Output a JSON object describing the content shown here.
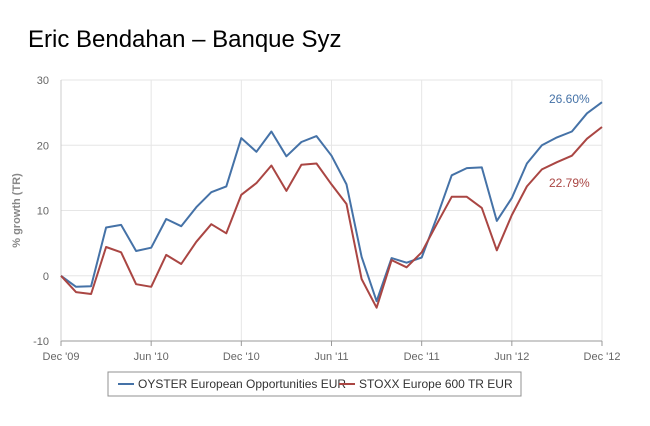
{
  "header": {
    "title": "Eric Bendahan – Banque Syz"
  },
  "chart_data": {
    "type": "line",
    "title": "Eric Bendahan – Banque Syz",
    "xlabel": "",
    "ylabel": "% growth (TR)",
    "ylim": [
      -10,
      30
    ],
    "yticks": [
      "30",
      "20",
      "10",
      "0",
      "-10"
    ],
    "ytick_values": [
      30,
      20,
      10,
      0,
      -10
    ],
    "xticks": [
      "Dec '09",
      "Jun '10",
      "Dec '10",
      "Jun '11",
      "Dec '11",
      "Jun '12",
      "Dec '12"
    ],
    "xtick_index": [
      0,
      6,
      12,
      18,
      24,
      30,
      36
    ],
    "x": [
      "Dec '09",
      "Jan '10",
      "Feb '10",
      "Mar '10",
      "Apr '10",
      "May '10",
      "Jun '10",
      "Jul '10",
      "Aug '10",
      "Sep '10",
      "Oct '10",
      "Nov '10",
      "Dec '10",
      "Jan '11",
      "Feb '11",
      "Mar '11",
      "Apr '11",
      "May '11",
      "Jun '11",
      "Jul '11",
      "Aug '11",
      "Sep '11",
      "Oct '11",
      "Nov '11",
      "Dec '11",
      "Jan '12",
      "Feb '12",
      "Mar '12",
      "Apr '12",
      "May '12",
      "Jun '12",
      "Jul '12",
      "Aug '12",
      "Sep '12",
      "Oct '12",
      "Nov '12",
      "Dec '12"
    ],
    "grid": true,
    "legend_position": "bottom",
    "series": [
      {
        "name": "OYSTER European Opportunities EUR",
        "color": "#4572a7",
        "end_label": "26.60%",
        "values": [
          0,
          -1.7,
          -1.6,
          7.4,
          7.8,
          3.8,
          4.3,
          8.7,
          7.6,
          10.5,
          12.8,
          13.7,
          21.1,
          19.0,
          22.1,
          18.3,
          20.5,
          21.4,
          18.4,
          14.0,
          2.9,
          -3.9,
          2.7,
          2.0,
          2.8,
          8.9,
          15.4,
          16.5,
          16.6,
          8.4,
          11.9,
          17.2,
          20.0,
          21.2,
          22.1,
          24.9,
          26.6
        ]
      },
      {
        "name": "STOXX Europe 600 TR EUR",
        "color": "#aa4643",
        "end_label": "22.79%",
        "values": [
          0,
          -2.5,
          -2.8,
          4.4,
          3.6,
          -1.3,
          -1.7,
          3.2,
          1.8,
          5.2,
          7.9,
          6.5,
          12.4,
          14.2,
          16.9,
          13.0,
          17.0,
          17.2,
          14.0,
          11.0,
          -0.5,
          -4.9,
          2.4,
          1.3,
          3.6,
          7.9,
          12.1,
          12.1,
          10.4,
          3.9,
          9.3,
          13.7,
          16.3,
          17.4,
          18.4,
          21.0,
          22.79
        ]
      }
    ]
  }
}
